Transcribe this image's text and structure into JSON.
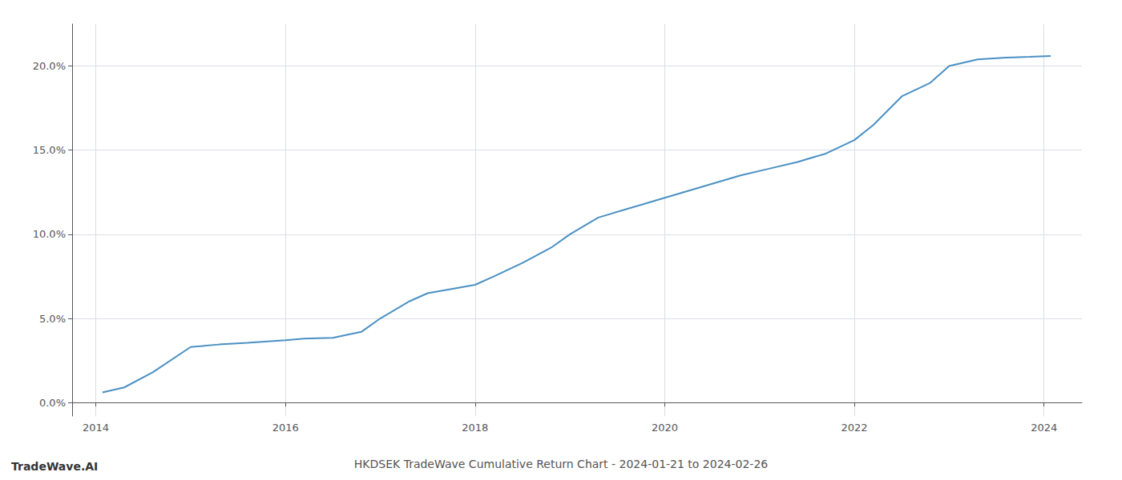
{
  "chart_data": {
    "type": "line",
    "title": "HKDSEK TradeWave Cumulative Return Chart - 2024-01-21 to 2024-02-26",
    "annotations": [
      "TradeWave.AI"
    ],
    "x": [
      2014.07,
      2014.3,
      2014.6,
      2015.0,
      2015.3,
      2015.6,
      2016.0,
      2016.2,
      2016.5,
      2016.8,
      2017.0,
      2017.3,
      2017.5,
      2017.8,
      2018.0,
      2018.2,
      2018.5,
      2018.8,
      2019.0,
      2019.3,
      2019.6,
      2019.9,
      2020.2,
      2020.5,
      2020.8,
      2021.1,
      2021.4,
      2021.7,
      2022.0,
      2022.2,
      2022.5,
      2022.8,
      2023.0,
      2023.3,
      2023.6,
      2023.85,
      2024.07
    ],
    "values": [
      0.6,
      0.9,
      1.8,
      3.3,
      3.45,
      3.55,
      3.7,
      3.8,
      3.85,
      4.2,
      5.0,
      6.0,
      6.5,
      6.8,
      7.0,
      7.5,
      8.3,
      9.2,
      10.0,
      11.0,
      11.5,
      12.0,
      12.5,
      13.0,
      13.5,
      13.9,
      14.3,
      14.8,
      15.6,
      16.5,
      18.2,
      19.0,
      20.0,
      20.4,
      20.5,
      20.55,
      20.6
    ],
    "color": "#4a90c4",
    "xlim": [
      2013.75,
      2024.4
    ],
    "xticks": [
      2014,
      2016,
      2018,
      2020,
      2022,
      2024
    ],
    "ylim": [
      -0.8,
      22.5
    ],
    "yticks": [
      {
        "value": 0.0,
        "label": "0.0%"
      },
      {
        "value": 5.0,
        "label": "5.0%"
      },
      {
        "value": 10.0,
        "label": "10.0%"
      },
      {
        "value": 15.0,
        "label": "15.0%"
      },
      {
        "value": 20.0,
        "label": "20.0%"
      }
    ],
    "grid": true
  }
}
